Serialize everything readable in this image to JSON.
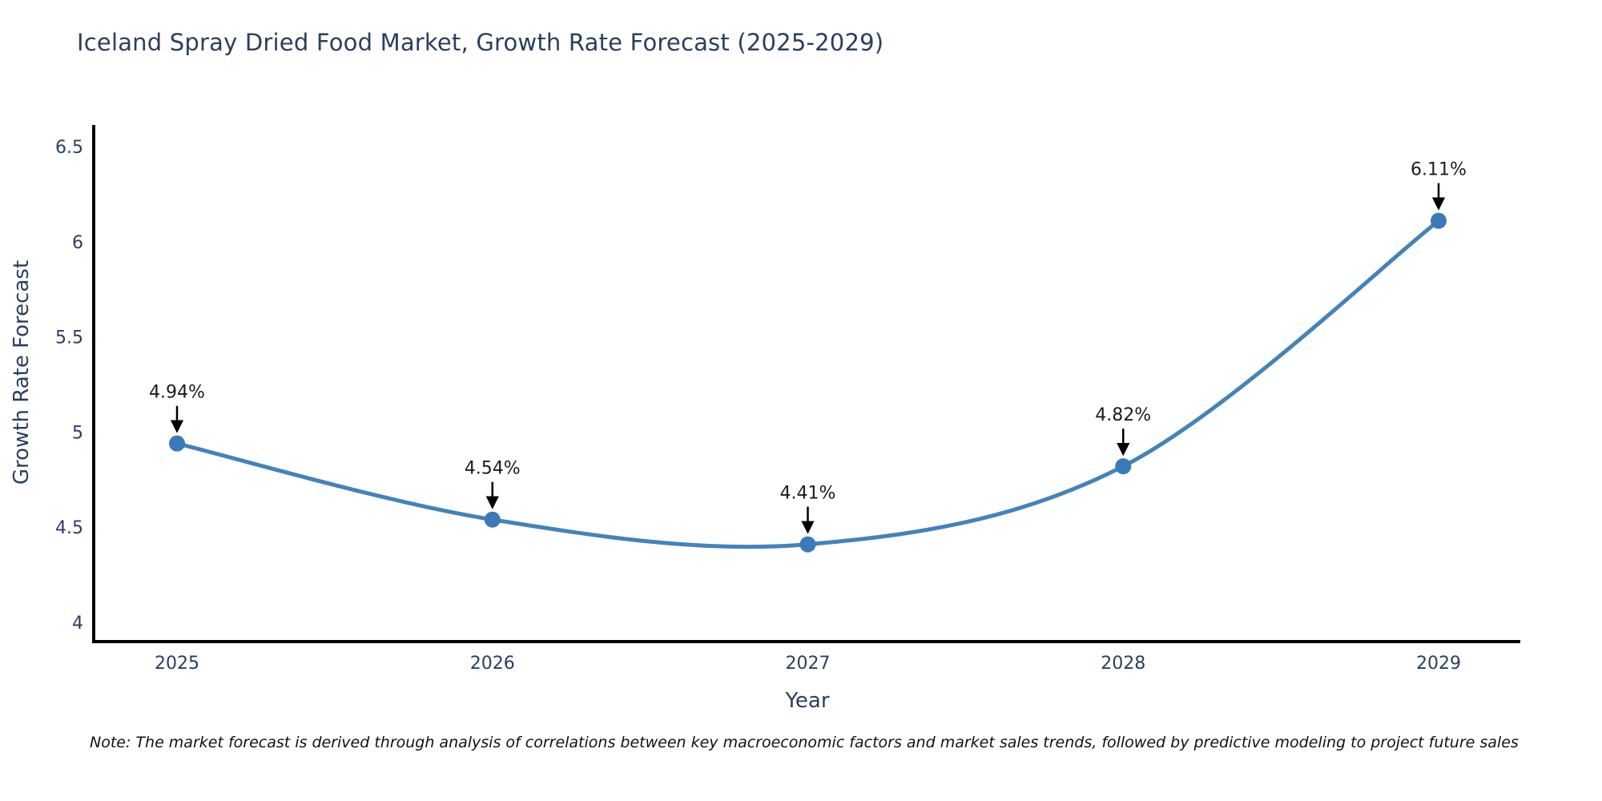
{
  "title": "Iceland Spray Dried Food Market, Growth Rate Forecast (2025-2029)",
  "note": "Note: The market forecast is derived through analysis of correlations between key macroeconomic factors and market sales trends, followed by predictive modeling to project future sales",
  "chart_data": {
    "type": "line",
    "title": "Iceland Spray Dried Food Market, Growth Rate Forecast (2025-2029)",
    "xlabel": "Year",
    "ylabel": "Growth Rate Forecast",
    "categories": [
      "2025",
      "2026",
      "2027",
      "2028",
      "2029"
    ],
    "values": [
      4.94,
      4.54,
      4.41,
      4.82,
      6.11
    ],
    "point_labels": [
      "4.94%",
      "4.54%",
      "4.41%",
      "4.82%",
      "6.11%"
    ],
    "yticks": [
      4,
      4.5,
      5,
      5.5,
      6,
      6.5
    ],
    "ylim": [
      3.9,
      6.6
    ],
    "grid": false,
    "legend": "none",
    "smooth_spline": true,
    "annotation_style": "black-arrow-above-point",
    "colors": {
      "line": "#4383ba",
      "marker": "#3b79b7",
      "axis": "#000000",
      "tick_text": "#2a3f5f",
      "title_text": "#2a3f5f",
      "annotation_text": "#1c1c1c"
    }
  }
}
